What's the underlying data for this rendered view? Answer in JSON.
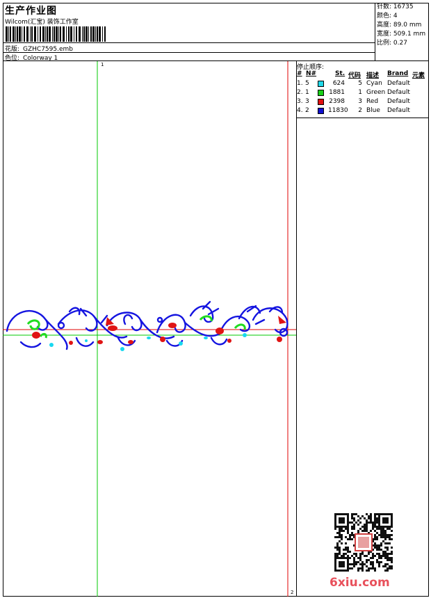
{
  "header": {
    "title": "生产作业图",
    "company": "Wilcom(汇宝) 装饰工作室",
    "design_label": "花版:",
    "design_value": "GZHC7595.emb",
    "colorway_label": "色位:",
    "colorway_value": "Colorway 1"
  },
  "stats": [
    {
      "label": "针数:",
      "value": "16735"
    },
    {
      "label": "颜色:",
      "value": "4"
    },
    {
      "label": "高度:",
      "value": "89.0 mm"
    },
    {
      "label": "宽度:",
      "value": "509.1 mm"
    },
    {
      "label": "比例:",
      "value": "0.27"
    }
  ],
  "stop_sequence": {
    "title": "停止顺序:",
    "columns": [
      "#",
      "N#",
      "St.",
      "代码",
      "描述",
      "Brand",
      "元素"
    ],
    "rows": [
      {
        "idx": "1.",
        "n": "5",
        "color": "#20d8e8",
        "stitches": "624",
        "code": "5",
        "desc": "Cyan",
        "brand": "Default"
      },
      {
        "idx": "2.",
        "n": "1",
        "color": "#18d018",
        "stitches": "1881",
        "code": "1",
        "desc": "Green",
        "brand": "Default"
      },
      {
        "idx": "3.",
        "n": "3",
        "color": "#e01010",
        "stitches": "2398",
        "code": "3",
        "desc": "Red",
        "brand": "Default"
      },
      {
        "idx": "4.",
        "n": "2",
        "color": "#1010d0",
        "stitches": "11830",
        "code": "2",
        "desc": "Blue",
        "brand": "Default"
      }
    ]
  },
  "canvas": {
    "guide_label_top": "1",
    "guide_label_bottom": "2",
    "colors": {
      "green_guide": "#00c800",
      "red_guide": "#e00000",
      "motif_blue": "#1414e0",
      "motif_red": "#e01414",
      "motif_green": "#20dc20",
      "motif_cyan": "#18d8f0"
    }
  },
  "watermark": "6xiu.com"
}
